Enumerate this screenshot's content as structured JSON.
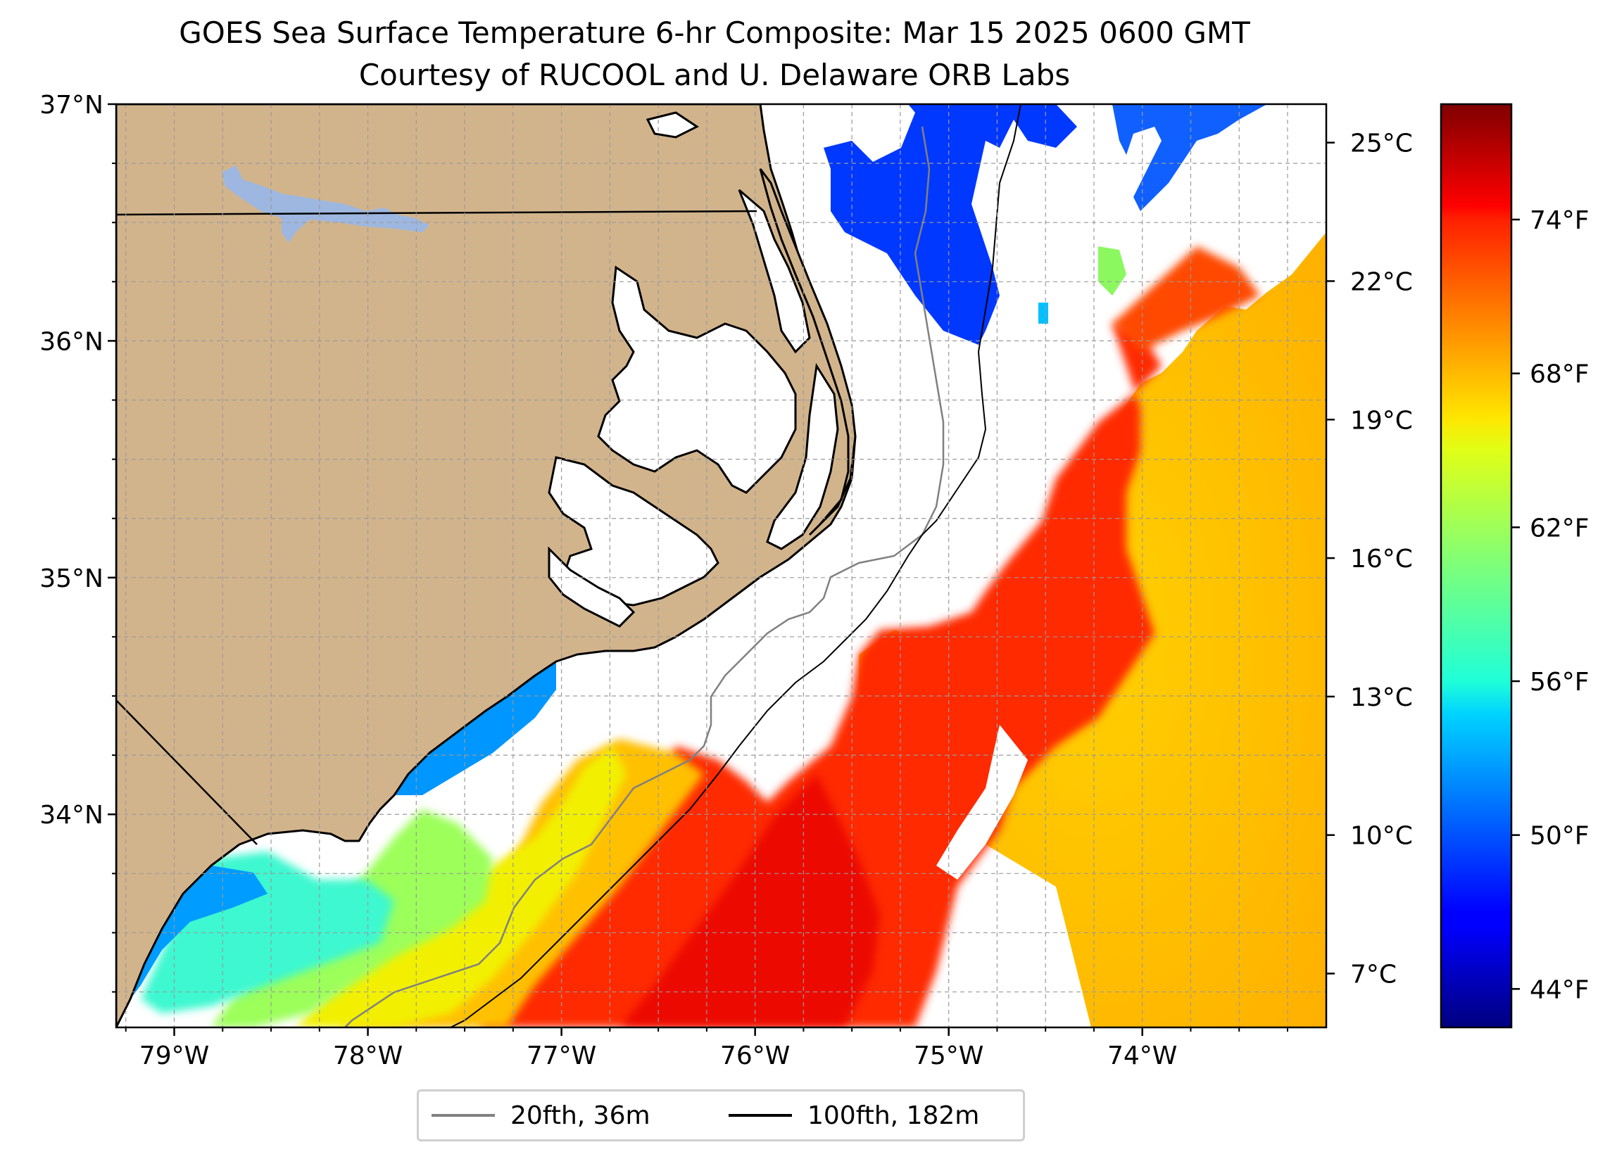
{
  "title": {
    "line1": "GOES Sea Surface Temperature 6-hr Composite: Mar 15 2025 0600 GMT",
    "line2": "Courtesy of RUCOOL and U. Delaware ORB Labs"
  },
  "map": {
    "extent": {
      "lon_min": -79.3,
      "lon_max": -73.05,
      "lat_min": 33.1,
      "lat_max": 37.0
    },
    "lat_ticks": [
      {
        "value": 37,
        "label": "37°N"
      },
      {
        "value": 36,
        "label": "36°N"
      },
      {
        "value": 35,
        "label": "35°N"
      },
      {
        "value": 34,
        "label": "34°N"
      }
    ],
    "lon_ticks": [
      {
        "value": -79,
        "label": "79°W"
      },
      {
        "value": -78,
        "label": "78°W"
      },
      {
        "value": -77,
        "label": "77°W"
      },
      {
        "value": -76,
        "label": "76°W"
      },
      {
        "value": -75,
        "label": "75°W"
      },
      {
        "value": -74,
        "label": "74°W"
      }
    ],
    "grid": true,
    "colors": {
      "land": "#D2B48C",
      "lake": "#9DB7E0",
      "ocean_no_data": "#FFFFFF",
      "coastline": "#000000",
      "grid": "#9a9a9a"
    }
  },
  "colorbar": {
    "colormap": "jet",
    "range_f": [
      42.5,
      78.5
    ],
    "celsius_ticks": [
      {
        "value": 25,
        "label": "25°C"
      },
      {
        "value": 22,
        "label": "22°C"
      },
      {
        "value": 19,
        "label": "19°C"
      },
      {
        "value": 16,
        "label": "16°C"
      },
      {
        "value": 13,
        "label": "13°C"
      },
      {
        "value": 10,
        "label": "10°C"
      },
      {
        "value": 7,
        "label": "7°C"
      }
    ],
    "fahrenheit_ticks": [
      {
        "value": 74,
        "label": "74°F"
      },
      {
        "value": 68,
        "label": "68°F"
      },
      {
        "value": 62,
        "label": "62°F"
      },
      {
        "value": 56,
        "label": "56°F"
      },
      {
        "value": 50,
        "label": "50°F"
      },
      {
        "value": 44,
        "label": "44°F"
      }
    ]
  },
  "legend": {
    "placement": "bottom-center",
    "items": [
      {
        "label": "20fth, 36m",
        "color": "#808080"
      },
      {
        "label": "100fth, 182m",
        "color": "#000000"
      }
    ]
  }
}
